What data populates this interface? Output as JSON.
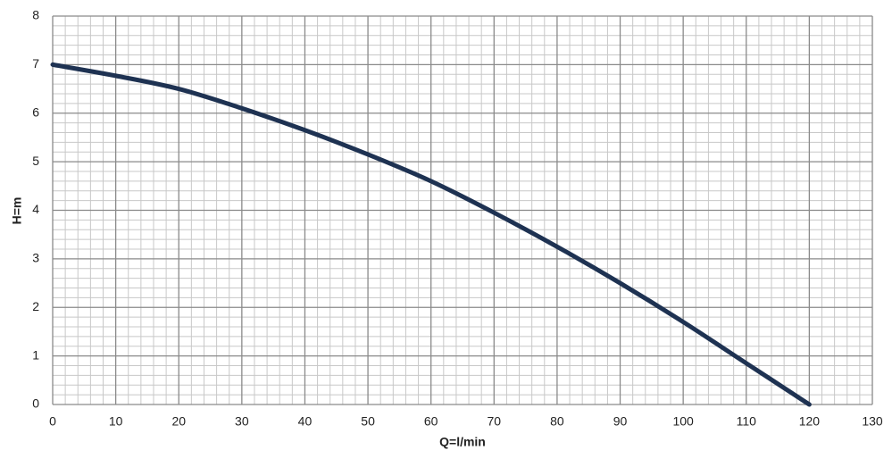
{
  "chart_data": {
    "type": "line",
    "x_label": "Q=l/min",
    "y_label": "H=m",
    "series": [
      {
        "name": "H",
        "color": "#1e3252",
        "x": [
          0,
          10,
          20,
          30,
          40,
          50,
          60,
          70,
          80,
          90,
          100,
          110,
          120
        ],
        "values": [
          7,
          6.77,
          6.5,
          6.1,
          5.65,
          5.15,
          4.6,
          3.95,
          3.25,
          2.5,
          1.7,
          0.85,
          0
        ]
      }
    ],
    "xlim": [
      0,
      130
    ],
    "xticks": [
      0,
      10,
      20,
      30,
      40,
      50,
      60,
      70,
      80,
      90,
      100,
      110,
      120,
      130
    ],
    "ylim": [
      0,
      8
    ],
    "yticks": [
      0,
      1,
      2,
      3,
      4,
      5,
      6,
      7,
      8
    ],
    "grid": true,
    "minor_grid_divisions": 5
  }
}
